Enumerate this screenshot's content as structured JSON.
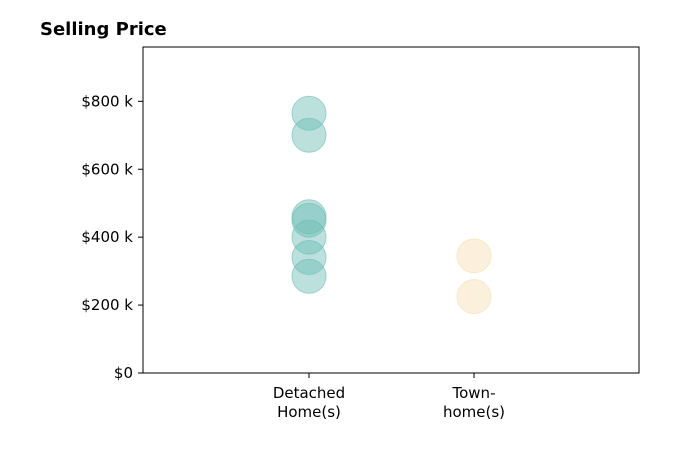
{
  "chart_data": {
    "type": "scatter",
    "title": "Selling Price",
    "xlabel": "",
    "ylabel": "",
    "categories": [
      [
        "Detached",
        "Home(s)"
      ],
      [
        "Town-",
        "home(s)"
      ]
    ],
    "y_ticks": [
      0,
      200000,
      400000,
      600000,
      800000
    ],
    "y_tick_labels": [
      "$0",
      "$200 k",
      "$400 k",
      "$600 k",
      "$800 k"
    ],
    "ylim": [
      0,
      960000
    ],
    "grid": false,
    "legend": "none",
    "series": [
      {
        "category_index": 0,
        "color": "#6bbdb3",
        "values": [
          765000,
          700000,
          460000,
          450000,
          400000,
          340000,
          285000
        ]
      },
      {
        "category_index": 1,
        "color": "#f5deb0",
        "values": [
          345000,
          225000
        ]
      }
    ]
  }
}
